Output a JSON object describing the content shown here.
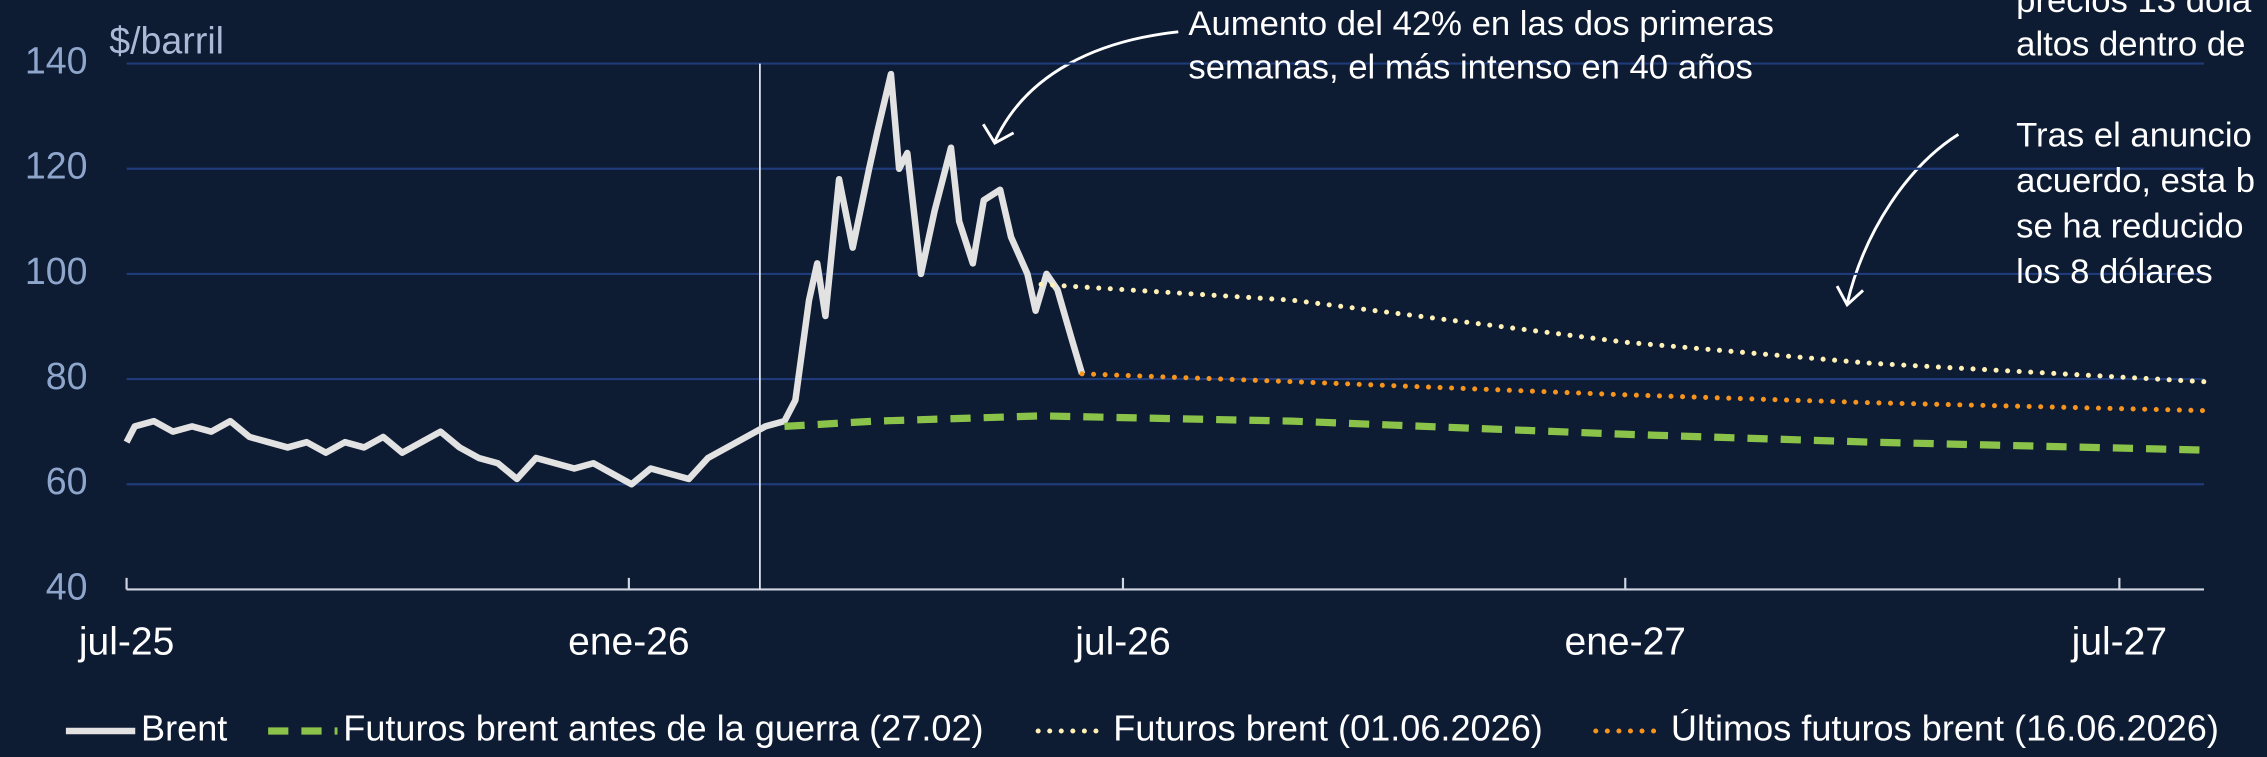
{
  "chart_data": {
    "type": "line",
    "y_label": "$/barril",
    "xlim": [
      "2025-07-01",
      "2027-08-01"
    ],
    "xticks": [
      {
        "value": "2025-07-01",
        "label": "jul-25"
      },
      {
        "value": "2026-01-01",
        "label": "ene-26"
      },
      {
        "value": "2026-07-01",
        "label": "jul-26"
      },
      {
        "value": "2027-01-01",
        "label": "ene-27"
      },
      {
        "value": "2027-07-01",
        "label": "jul-27"
      }
    ],
    "ylim": [
      40,
      140
    ],
    "yticks": [
      40,
      60,
      80,
      100,
      120,
      140
    ],
    "grid": true,
    "vline": "2026-02-18",
    "annotations": [
      [
        "Aumento del 42% en las dos primeras",
        "semanas, el más intenso en 40 años"
      ],
      [
        "precios 13 dóla",
        "altos dentro de"
      ],
      [
        "Tras el anuncio",
        "acuerdo, esta b",
        "se ha reducido",
        "los 8 dólares"
      ]
    ],
    "series": [
      {
        "name": "Brent",
        "color": "#e2e2e2",
        "style": "solid",
        "x": [
          "2025-07-01",
          "2025-07-04",
          "2025-07-11",
          "2025-07-18",
          "2025-07-25",
          "2025-08-01",
          "2025-08-08",
          "2025-08-15",
          "2025-08-22",
          "2025-08-29",
          "2025-09-05",
          "2025-09-12",
          "2025-09-19",
          "2025-09-26",
          "2025-10-03",
          "2025-10-10",
          "2025-10-17",
          "2025-10-24",
          "2025-10-31",
          "2025-11-07",
          "2025-11-14",
          "2025-11-21",
          "2025-11-28",
          "2025-12-05",
          "2025-12-12",
          "2025-12-19",
          "2025-12-26",
          "2026-01-02",
          "2026-01-09",
          "2026-01-16",
          "2026-01-23",
          "2026-01-30",
          "2026-02-06",
          "2026-02-13",
          "2026-02-20",
          "2026-02-27",
          "2026-03-03",
          "2026-03-08",
          "2026-03-11",
          "2026-03-14",
          "2026-03-19",
          "2026-03-24",
          "2026-03-30",
          "2026-04-02",
          "2026-04-07",
          "2026-04-10",
          "2026-04-13",
          "2026-04-18",
          "2026-04-23",
          "2026-04-29",
          "2026-05-02",
          "2026-05-07",
          "2026-05-11",
          "2026-05-17",
          "2026-05-21",
          "2026-05-27",
          "2026-05-30",
          "2026-06-03",
          "2026-06-07",
          "2026-06-12",
          "2026-06-16"
        ],
        "values": [
          68,
          71,
          72,
          70,
          71,
          70,
          72,
          69,
          68,
          67,
          68,
          66,
          68,
          67,
          69,
          66,
          68,
          70,
          67,
          65,
          64,
          61,
          65,
          64,
          63,
          64,
          62,
          60,
          63,
          62,
          61,
          65,
          67,
          69,
          71,
          72,
          76,
          95,
          102,
          92,
          118,
          105,
          120,
          127,
          138,
          120,
          123,
          100,
          112,
          124,
          110,
          102,
          114,
          116,
          107,
          100,
          93,
          100,
          97,
          88,
          81
        ]
      },
      {
        "name": "Futuros brent antes de la guerra (27.02)",
        "color": "#8bc34a",
        "style": "dashed",
        "x": [
          "2026-02-27",
          "2026-04-01",
          "2026-06-01",
          "2026-09-01",
          "2027-01-01",
          "2027-04-01",
          "2027-08-01"
        ],
        "values": [
          71,
          72,
          73,
          72,
          69.5,
          68,
          66.5
        ]
      },
      {
        "name": "Futuros brent (01.06.2026)",
        "color": "#fff1b5",
        "style": "dotted",
        "x": [
          "2026-06-01",
          "2026-09-01",
          "2027-01-01",
          "2027-04-01",
          "2027-08-01"
        ],
        "values": [
          98,
          95,
          87,
          83,
          79.5
        ]
      },
      {
        "name": "Últimos futuros brent (16.06.2026)",
        "color": "#f7941d",
        "style": "dotted",
        "x": [
          "2026-06-16",
          "2026-09-01",
          "2027-01-01",
          "2027-04-01",
          "2027-08-01"
        ],
        "values": [
          81,
          79.5,
          77,
          75.5,
          74
        ]
      }
    ]
  }
}
